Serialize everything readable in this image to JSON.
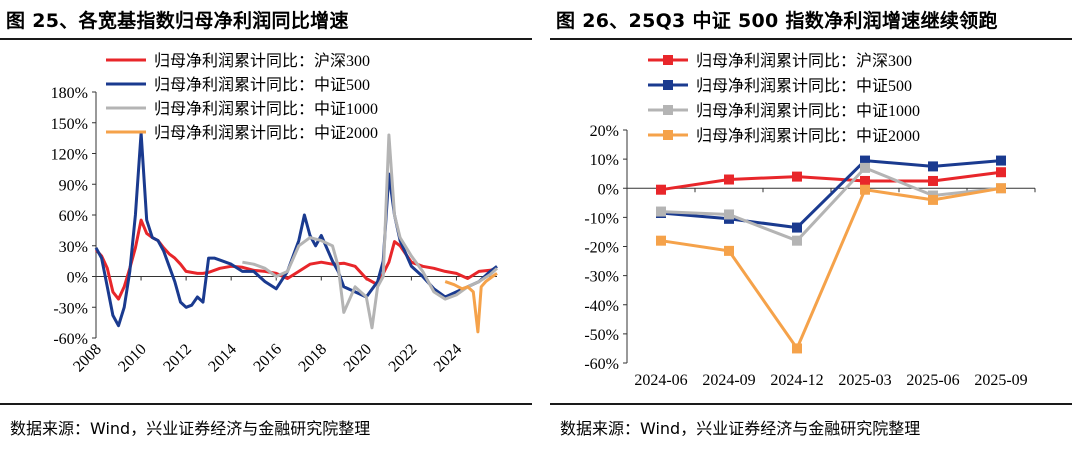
{
  "figures": [
    {
      "title": "图 25、各宽基指数归母净利润同比增速",
      "source": "数据来源：Wind，兴业证券经济与金融研究院整理"
    },
    {
      "title": "图 26、25Q3 中证 500 指数净利润增速继续领跑",
      "source": "数据来源：Wind，兴业证券经济与金融研究院整理"
    }
  ],
  "chart_data": [
    {
      "type": "line",
      "title": "图 25、各宽基指数归母净利润同比增速",
      "x_ticks": [
        "2008",
        "2010",
        "2012",
        "2014",
        "2016",
        "2018",
        "2020",
        "2022",
        "2024"
      ],
      "xlim": [
        2008,
        2025.8
      ],
      "ylim": [
        -60,
        180
      ],
      "y_ticks": [
        -60,
        -30,
        0,
        30,
        60,
        90,
        120,
        150,
        180
      ],
      "y_tick_labels": [
        "-60%",
        "-30%",
        "0%",
        "30%",
        "60%",
        "90%",
        "120%",
        "150%",
        "180%"
      ],
      "legend": "top-left",
      "series": [
        {
          "name": "归母净利润累计同比：沪深300",
          "color": "#e8262a",
          "x": [
            2008.0,
            2008.25,
            2008.5,
            2008.75,
            2009.0,
            2009.25,
            2009.5,
            2009.75,
            2010.0,
            2010.25,
            2010.5,
            2010.75,
            2011.0,
            2011.25,
            2011.5,
            2011.75,
            2012.0,
            2012.25,
            2012.5,
            2012.75,
            2013.0,
            2013.5,
            2014.0,
            2014.5,
            2015.0,
            2015.5,
            2016.0,
            2016.5,
            2017.0,
            2017.5,
            2018.0,
            2018.5,
            2019.0,
            2019.5,
            2020.0,
            2020.5,
            2021.0,
            2021.25,
            2021.5,
            2022.0,
            2022.5,
            2023.0,
            2023.5,
            2024.0,
            2024.5,
            2025.0,
            2025.5,
            2025.8
          ],
          "y": [
            26,
            20,
            8,
            -15,
            -22,
            -10,
            8,
            28,
            55,
            42,
            38,
            35,
            28,
            22,
            18,
            12,
            5,
            4,
            3,
            3,
            4,
            8,
            10,
            9,
            6,
            5,
            3,
            -2,
            5,
            12,
            14,
            12,
            13,
            10,
            -2,
            -8,
            14,
            34,
            30,
            14,
            10,
            8,
            5,
            3,
            -2,
            5,
            6,
            8
          ]
        },
        {
          "name": "归母净利润累计同比：中证500",
          "color": "#1a3a8f",
          "x": [
            2008.0,
            2008.25,
            2008.5,
            2008.75,
            2009.0,
            2009.25,
            2009.5,
            2009.75,
            2010.0,
            2010.25,
            2010.5,
            2010.75,
            2011.0,
            2011.25,
            2011.5,
            2011.75,
            2012.0,
            2012.25,
            2012.5,
            2012.75,
            2013.0,
            2013.25,
            2013.5,
            2014.0,
            2014.5,
            2015.0,
            2015.5,
            2016.0,
            2016.5,
            2017.0,
            2017.25,
            2017.5,
            2017.75,
            2018.0,
            2018.5,
            2018.75,
            2019.0,
            2019.5,
            2020.0,
            2020.5,
            2020.75,
            2021.0,
            2021.25,
            2021.5,
            2022.0,
            2022.5,
            2023.0,
            2023.5,
            2024.0,
            2024.5,
            2025.0,
            2025.5,
            2025.8
          ],
          "y": [
            28,
            18,
            -10,
            -38,
            -48,
            -30,
            5,
            60,
            140,
            55,
            38,
            35,
            25,
            10,
            -5,
            -25,
            -30,
            -28,
            -20,
            -25,
            18,
            18,
            16,
            12,
            5,
            5,
            -5,
            -12,
            5,
            35,
            60,
            40,
            30,
            40,
            15,
            5,
            -10,
            -15,
            -20,
            -5,
            15,
            100,
            60,
            35,
            10,
            0,
            -12,
            -20,
            -15,
            -10,
            -5,
            5,
            10
          ]
        },
        {
          "name": "归母净利润累计同比：中证1000",
          "color": "#b4b4b4",
          "x": [
            2014.5,
            2015.0,
            2015.5,
            2016.0,
            2016.5,
            2017.0,
            2017.5,
            2018.0,
            2018.5,
            2018.75,
            2019.0,
            2019.5,
            2020.0,
            2020.25,
            2020.5,
            2020.75,
            2021.0,
            2021.25,
            2021.5,
            2022.0,
            2022.5,
            2023.0,
            2023.5,
            2024.0,
            2024.5,
            2025.0,
            2025.5,
            2025.8
          ],
          "y": [
            14,
            12,
            8,
            0,
            5,
            30,
            38,
            35,
            30,
            10,
            -35,
            -10,
            -20,
            -50,
            -10,
            0,
            138,
            60,
            38,
            20,
            5,
            -15,
            -22,
            -18,
            -10,
            -5,
            2,
            8
          ]
        },
        {
          "name": "归母净利润累计同比：中证2000",
          "color": "#f5a24a",
          "x": [
            2023.5,
            2023.9,
            2024.25,
            2024.5,
            2024.75,
            2024.95,
            2025.1,
            2025.3,
            2025.6,
            2025.8
          ],
          "y": [
            -5,
            -8,
            -12,
            -10,
            -15,
            -54,
            -10,
            -5,
            0,
            3
          ]
        }
      ]
    },
    {
      "type": "line",
      "title": "图 26、25Q3 中证 500 指数净利润增速继续领跑",
      "categories": [
        "2024-06",
        "2024-09",
        "2024-12",
        "2025-03",
        "2025-06",
        "2025-09"
      ],
      "ylim": [
        -60,
        20
      ],
      "y_ticks": [
        -60,
        -50,
        -40,
        -30,
        -20,
        -10,
        0,
        10,
        20
      ],
      "y_tick_labels": [
        "-60%",
        "-50%",
        "-40%",
        "-30%",
        "-20%",
        "-10%",
        "0%",
        "10%",
        "20%"
      ],
      "legend": "top-left",
      "series": [
        {
          "name": "归母净利润累计同比：沪深300",
          "color": "#e8262a",
          "values": [
            -0.5,
            3,
            4,
            2.5,
            2.5,
            5.5
          ]
        },
        {
          "name": "归母净利润累计同比：中证500",
          "color": "#1a3a8f",
          "values": [
            -8.5,
            -10.5,
            -13.5,
            9.5,
            7.5,
            9.5
          ]
        },
        {
          "name": "归母净利润累计同比：中证1000",
          "color": "#b4b4b4",
          "values": [
            -8,
            -9,
            -18,
            7,
            -2.5,
            0
          ]
        },
        {
          "name": "归母净利润累计同比：中证2000",
          "color": "#f5a24a",
          "values": [
            -18,
            -21.5,
            -55,
            -0.5,
            -4,
            0
          ]
        }
      ]
    }
  ]
}
